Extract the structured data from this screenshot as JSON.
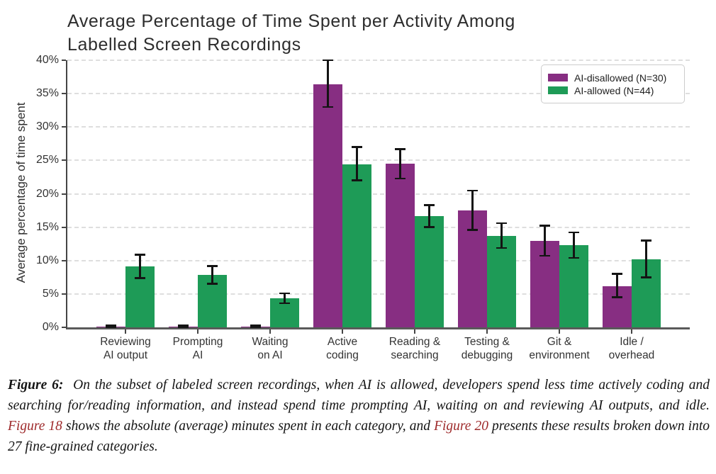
{
  "chart_data": {
    "type": "bar",
    "title": "Average Percentage of Time Spent per Activity Among\nLabelled Screen Recordings",
    "ylabel": "Average percentage of time spent",
    "xlabel": "",
    "ylim": [
      0,
      40
    ],
    "ytick_step": 5,
    "ytick_labels": [
      "0%",
      "5%",
      "10%",
      "15%",
      "20%",
      "25%",
      "30%",
      "35%",
      "40%"
    ],
    "grid": "horizontal-dashed",
    "legend_position": "upper right",
    "categories": [
      "Reviewing\nAI output",
      "Prompting\nAI",
      "Waiting\non AI",
      "Active\ncoding",
      "Reading &\nsearching",
      "Testing &\ndebugging",
      "Git &\nenvironment",
      "Idle /\noverhead"
    ],
    "series": [
      {
        "name": "AI-disallowed (N=30)",
        "color": "#872e82",
        "values": [
          0.1,
          0.1,
          0.1,
          36.4,
          24.5,
          17.5,
          12.9,
          6.2
        ],
        "err_low": [
          0.05,
          0.05,
          0.05,
          33.0,
          22.3,
          14.6,
          10.7,
          4.5
        ],
        "err_high": [
          0.25,
          0.25,
          0.25,
          40.0,
          26.7,
          20.5,
          15.2,
          8.0
        ]
      },
      {
        "name": "AI-allowed (N=44)",
        "color": "#1e9b57",
        "values": [
          9.1,
          7.9,
          4.3,
          24.4,
          16.7,
          13.7,
          12.3,
          10.2
        ],
        "err_low": [
          7.4,
          6.5,
          3.6,
          22.0,
          15.0,
          11.9,
          10.4,
          7.5
        ],
        "err_high": [
          10.9,
          9.2,
          5.1,
          27.0,
          18.3,
          15.6,
          14.2,
          13.0
        ]
      }
    ]
  },
  "caption": {
    "label": "Figure 6:",
    "seg1": " On the subset of labeled screen recordings, when AI is allowed, developers spend less time actively coding and searching for/reading information, and instead spend time prompting AI, waiting on and reviewing AI outputs, and idle. ",
    "ref1": "Figure 18",
    "seg2": " shows the absolute (average) minutes spent in each category, and ",
    "ref2": "Figure 20",
    "seg3": " presents these results broken down into 27 fine-grained categories."
  }
}
